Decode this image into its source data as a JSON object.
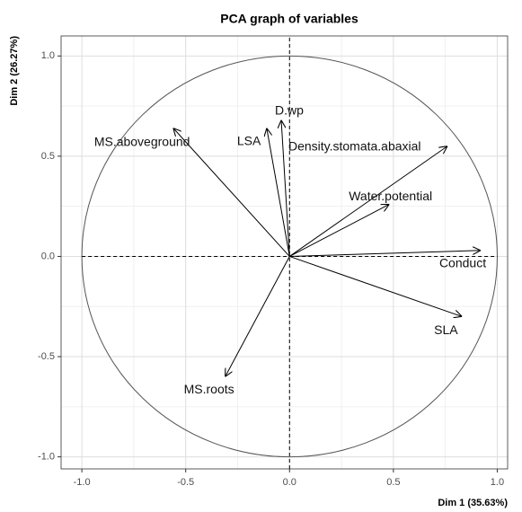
{
  "chart_data": {
    "type": "vector",
    "title": "PCA graph of variables",
    "xlabel": "Dim 1 (35.63%)",
    "ylabel": "Dim 2 (26.27%)",
    "labels": [
      "MS.aboveground",
      "LSA",
      "D.wp",
      "Density.stomata.abaxial",
      "Water.potential",
      "Conduct",
      "SLA",
      "MS.roots"
    ],
    "x": [
      -0.56,
      -0.11,
      -0.04,
      0.76,
      0.48,
      0.92,
      0.83,
      -0.31
    ],
    "y": [
      0.64,
      0.64,
      0.68,
      0.55,
      0.26,
      0.03,
      -0.3,
      -0.6
    ],
    "xlim": [
      -1.1,
      1.05
    ],
    "ylim": [
      -1.06,
      1.1
    ],
    "xticks": [
      {
        "value": -1,
        "label": "-1.0"
      },
      {
        "value": -0.5,
        "label": "-0.5"
      },
      {
        "value": 0,
        "label": "0.0"
      },
      0.5,
      {
        "value": 1,
        "label": "1.0"
      }
    ],
    "yticks": [
      {
        "value": -1,
        "label": "-1.0"
      },
      {
        "value": -0.5,
        "label": "-0.5"
      },
      {
        "value": 0,
        "label": "0.0"
      },
      0.5,
      {
        "value": 1,
        "label": "1.0"
      }
    ],
    "grid": true,
    "color": "#000000"
  }
}
